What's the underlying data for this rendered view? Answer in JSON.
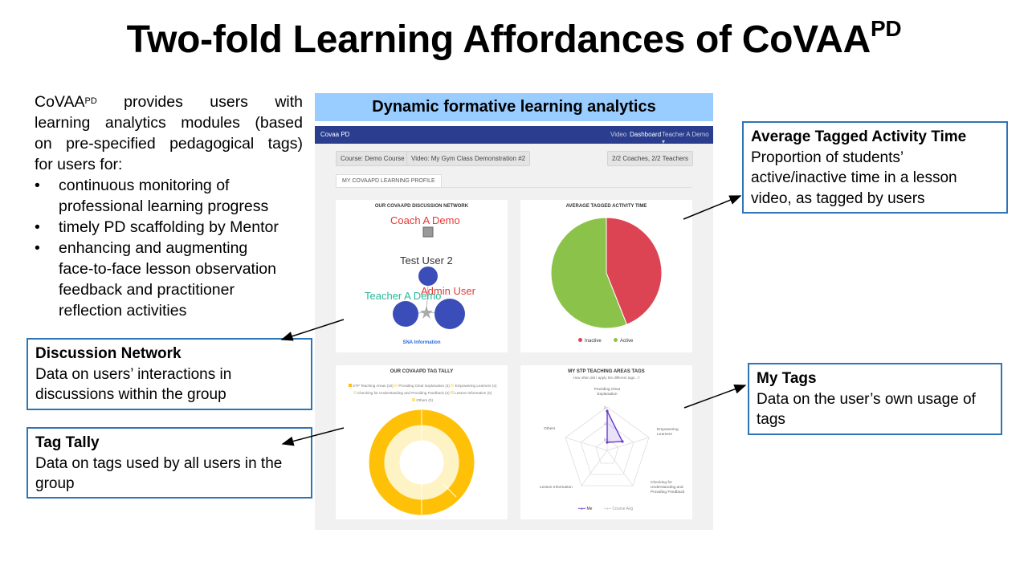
{
  "title": {
    "main": "Two-fold Learning Affordances of CoVAA",
    "sup": "PD"
  },
  "intro": {
    "brand": "CoVAA",
    "brand_sup": "PD",
    "line1_rest": " provides users with",
    "line2": "learning analytics modules (based",
    "line3": "on pre-specified pedagogical tags)",
    "line4": "for users for:",
    "bullets": [
      [
        "continuous monitoring of",
        "professional learning progress"
      ],
      [
        "timely PD scaffolding by Mentor"
      ],
      [
        "enhancing and augmenting",
        "face-to-face lesson observation",
        "feedback and practitioner",
        "reflection activities"
      ]
    ]
  },
  "banner": "Dynamic formative learning analytics",
  "callouts": {
    "discussion": {
      "title": "Discussion Network",
      "text": "Data on users’ interactions in discussions within the group"
    },
    "tally": {
      "title": "Tag Tally",
      "text": "Data on tags used by all users in the group"
    },
    "activity": {
      "title": "Average Tagged Activity Time",
      "text": "Proportion of students’ active/inactive time in a lesson video, as tagged by users"
    },
    "mytags": {
      "title": "My Tags",
      "text": "Data on the user’s own usage of tags"
    }
  },
  "app": {
    "brand": "Covaa PD",
    "nav": {
      "video": "Video",
      "dashboard": "Dashboard",
      "user": "Teacher A Demo ▾"
    },
    "chips": {
      "course": "Course: Demo Course",
      "video": "Video: My Gym Class Demonstration #2",
      "coaches": "2/2 Coaches, 2/2 Teachers"
    },
    "tab": "MY COVAAPD LEARNING PROFILE",
    "network": {
      "title": "OUR COVAAPD DISCUSSION NETWORK",
      "nodes": {
        "coach": "Coach A Demo",
        "test": "Test User 2",
        "admin": "Admin User",
        "teacher": "Teacher A Demo"
      },
      "link": "SNA Information"
    },
    "activity": {
      "title": "AVERAGE TAGGED ACTIVITY TIME",
      "legend": [
        "Inactive",
        "Active"
      ]
    },
    "tally": {
      "title": "OUR COVAAPD TAG TALLY",
      "legend": [
        "STP Teaching Areas (10)",
        "Providing Clear Explanation (4)",
        "Empowering Learners (4)",
        "Checking for Understanding and Providing Feedback (2)",
        "Lesson Information (0)",
        "Others (0)"
      ]
    },
    "radar": {
      "title": "MY STP TEACHING AREAS TAGS",
      "subtitle": "How often did I apply the different tags...?",
      "axes": {
        "top1": "Providing Clear",
        "top2": "Explanation",
        "right1": "Empowering",
        "right2": "Learners",
        "br1": "Checking for",
        "br2": "Understanding and",
        "br3": "Providing Feedback",
        "bl": "Lesson Information",
        "left": "Others"
      },
      "ticks": [
        "2",
        "1",
        "0"
      ],
      "legend": [
        "Me",
        "Course Avg"
      ]
    }
  },
  "chart_data": [
    {
      "type": "pie",
      "title": "AVERAGE TAGGED ACTIVITY TIME",
      "categories": [
        "Inactive",
        "Active"
      ],
      "values": [
        44,
        56
      ],
      "colors": [
        "#dc4453",
        "#8bc34a"
      ],
      "legend": "bottom"
    },
    {
      "type": "pie",
      "title": "OUR COVAAPD TAG TALLY",
      "rings": [
        {
          "categories": [
            "STP Teaching Areas"
          ],
          "values": [
            10
          ],
          "color": "#ffc107"
        },
        {
          "categories": [
            "Providing Clear Explanation",
            "Empowering Learners",
            "Checking for Understanding and Providing Feedback",
            "Lesson Information",
            "Others"
          ],
          "values": [
            4,
            4,
            2,
            0,
            0
          ],
          "colors": [
            "#fff5c6",
            "#fdf1b8",
            "#fbedaa",
            "#f9e99c",
            "#f7e58e"
          ]
        }
      ],
      "legend": "top"
    },
    {
      "type": "radar",
      "title": "MY STP TEACHING AREAS TAGS",
      "categories": [
        "Providing Clear Explanation",
        "Empowering Learners",
        "Checking for Understanding and Providing Feedback",
        "Lesson Information",
        "Others"
      ],
      "series": [
        {
          "name": "Me",
          "values": [
            2,
            1,
            0,
            0,
            0
          ],
          "color": "#6a3bd1"
        },
        {
          "name": "Course Avg",
          "values": [
            0,
            0,
            0,
            0,
            0
          ],
          "color": "#cccccc"
        }
      ],
      "ylim": [
        0,
        2
      ],
      "legend": "bottom"
    }
  ]
}
